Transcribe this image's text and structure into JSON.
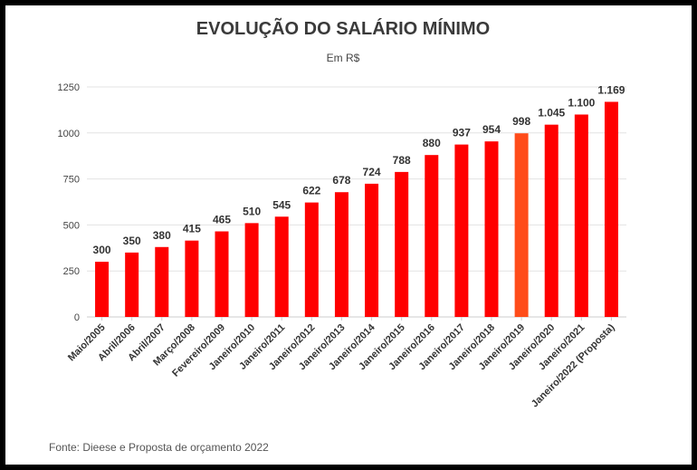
{
  "chart_data": {
    "type": "bar",
    "title": "EVOLUÇÃO DO SALÁRIO MÍNIMO",
    "subtitle": "Em R$",
    "source": "Fonte: Dieese e Proposta de orçamento 2022",
    "categories": [
      "Maio/2005",
      "Abril/2006",
      "Abril/2007",
      "Março/2008",
      "Fevereiro/2009",
      "Janeiro/2010",
      "Janeiro/2011",
      "Janeiro/2012",
      "Janeiro/2013",
      "Janeiro/2014",
      "Janeiro/2015",
      "Janeiro/2016",
      "Janeiro/2017",
      "Janeiro/2018",
      "Janeiro/2019",
      "Janeiro/2020",
      "Janeiro/2021",
      "Janeiro/2022 (Proposta)"
    ],
    "values": [
      300,
      350,
      380,
      415,
      465,
      510,
      545,
      622,
      678,
      724,
      788,
      880,
      937,
      954,
      998,
      1045,
      1100,
      1169
    ],
    "value_labels": [
      "300",
      "350",
      "380",
      "415",
      "465",
      "510",
      "545",
      "622",
      "678",
      "724",
      "788",
      "880",
      "937",
      "954",
      "998",
      "1.045",
      "1.100",
      "1.169"
    ],
    "yticks": [
      0,
      250,
      500,
      750,
      1000,
      1250
    ],
    "ylim": [
      0,
      1250
    ],
    "grid": true,
    "legend": "none",
    "colors": {
      "bar": "#ff0000",
      "highlight_bar": "#ff4c1a",
      "highlight_category": "Janeiro/2019"
    }
  }
}
